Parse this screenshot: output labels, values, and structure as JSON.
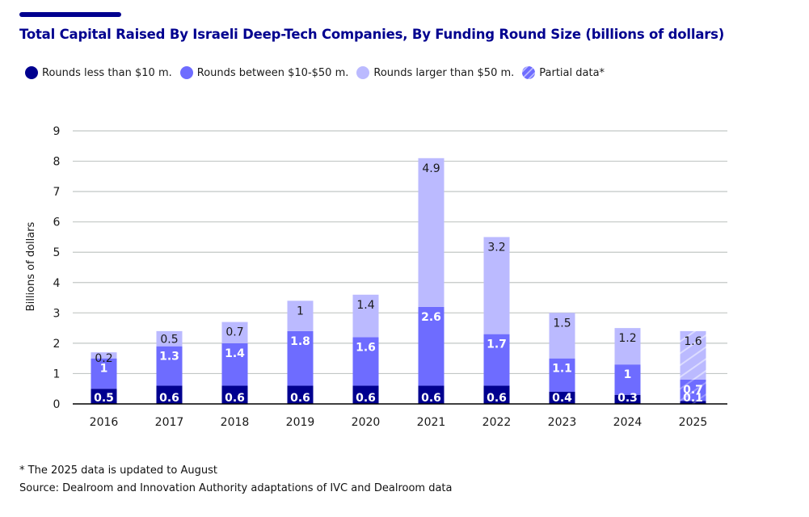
{
  "header": {
    "title": "Total Capital Raised By Israeli Deep-Tech Companies, By Funding Round Size (billions of dollars)"
  },
  "legend": [
    {
      "label": "Rounds less than $10 m.",
      "color": "#00008f",
      "icon": "circle-icon"
    },
    {
      "label": "Rounds between $10-$50 m.",
      "color": "#6e6cff",
      "icon": "circle-icon"
    },
    {
      "label": "Rounds larger than $50 m.",
      "color": "#bbbaff",
      "icon": "circle-icon"
    },
    {
      "label": "Partial data*",
      "color": "#6e6cff",
      "icon": "hatched-circle-icon"
    }
  ],
  "footnotes": {
    "note": "* The 2025 data is updated to August",
    "source": "Source: Dealroom and Innovation Authority adaptations of IVC and Dealroom data"
  },
  "colors": {
    "small": "#00008f",
    "medium": "#6e6cff",
    "large": "#bbbaff",
    "grid": "#c2c7c5",
    "axis": "#000000",
    "title": "#00008f"
  },
  "chart_data": {
    "type": "bar",
    "stacked": true,
    "title": "Total Capital Raised By Israeli Deep-Tech Companies, By Funding Round Size (billions of dollars)",
    "xlabel": "",
    "ylabel": "Billions of dollars",
    "ylim": [
      0,
      9
    ],
    "yticks": [
      0,
      1,
      2,
      3,
      4,
      5,
      6,
      7,
      8,
      9
    ],
    "grid": true,
    "legend_position": "top-left",
    "categories": [
      "2016",
      "2017",
      "2018",
      "2019",
      "2020",
      "2021",
      "2022",
      "2023",
      "2024",
      "2025"
    ],
    "partial_categories": [
      "2025"
    ],
    "series": [
      {
        "name": "Rounds less than $10 m.",
        "values": [
          0.5,
          0.6,
          0.6,
          0.6,
          0.6,
          0.6,
          0.6,
          0.4,
          0.3,
          0.1
        ],
        "labels": [
          "0.5",
          "0.6",
          "0.6",
          "0.6",
          "0.6",
          "0.6",
          "0.6",
          "0.4",
          "0.3",
          "0.1"
        ]
      },
      {
        "name": "Rounds between $10-$50 m.",
        "values": [
          1.0,
          1.3,
          1.4,
          1.8,
          1.6,
          2.6,
          1.7,
          1.1,
          1.0,
          0.7
        ],
        "labels": [
          "1",
          "1.3",
          "1.4",
          "1.8",
          "1.6",
          "2.6",
          "1.7",
          "1.1",
          "1",
          "0.7"
        ]
      },
      {
        "name": "Rounds larger than $50 m.",
        "values": [
          0.2,
          0.5,
          0.7,
          1.0,
          1.4,
          4.9,
          3.2,
          1.5,
          1.2,
          1.6
        ],
        "labels": [
          "0.2",
          "0.5",
          "0.7",
          "1",
          "1.4",
          "4.9",
          "3.2",
          "1.5",
          "1.2",
          "1.6"
        ]
      }
    ],
    "annotations": [
      "* The 2025 data is updated to August"
    ]
  }
}
